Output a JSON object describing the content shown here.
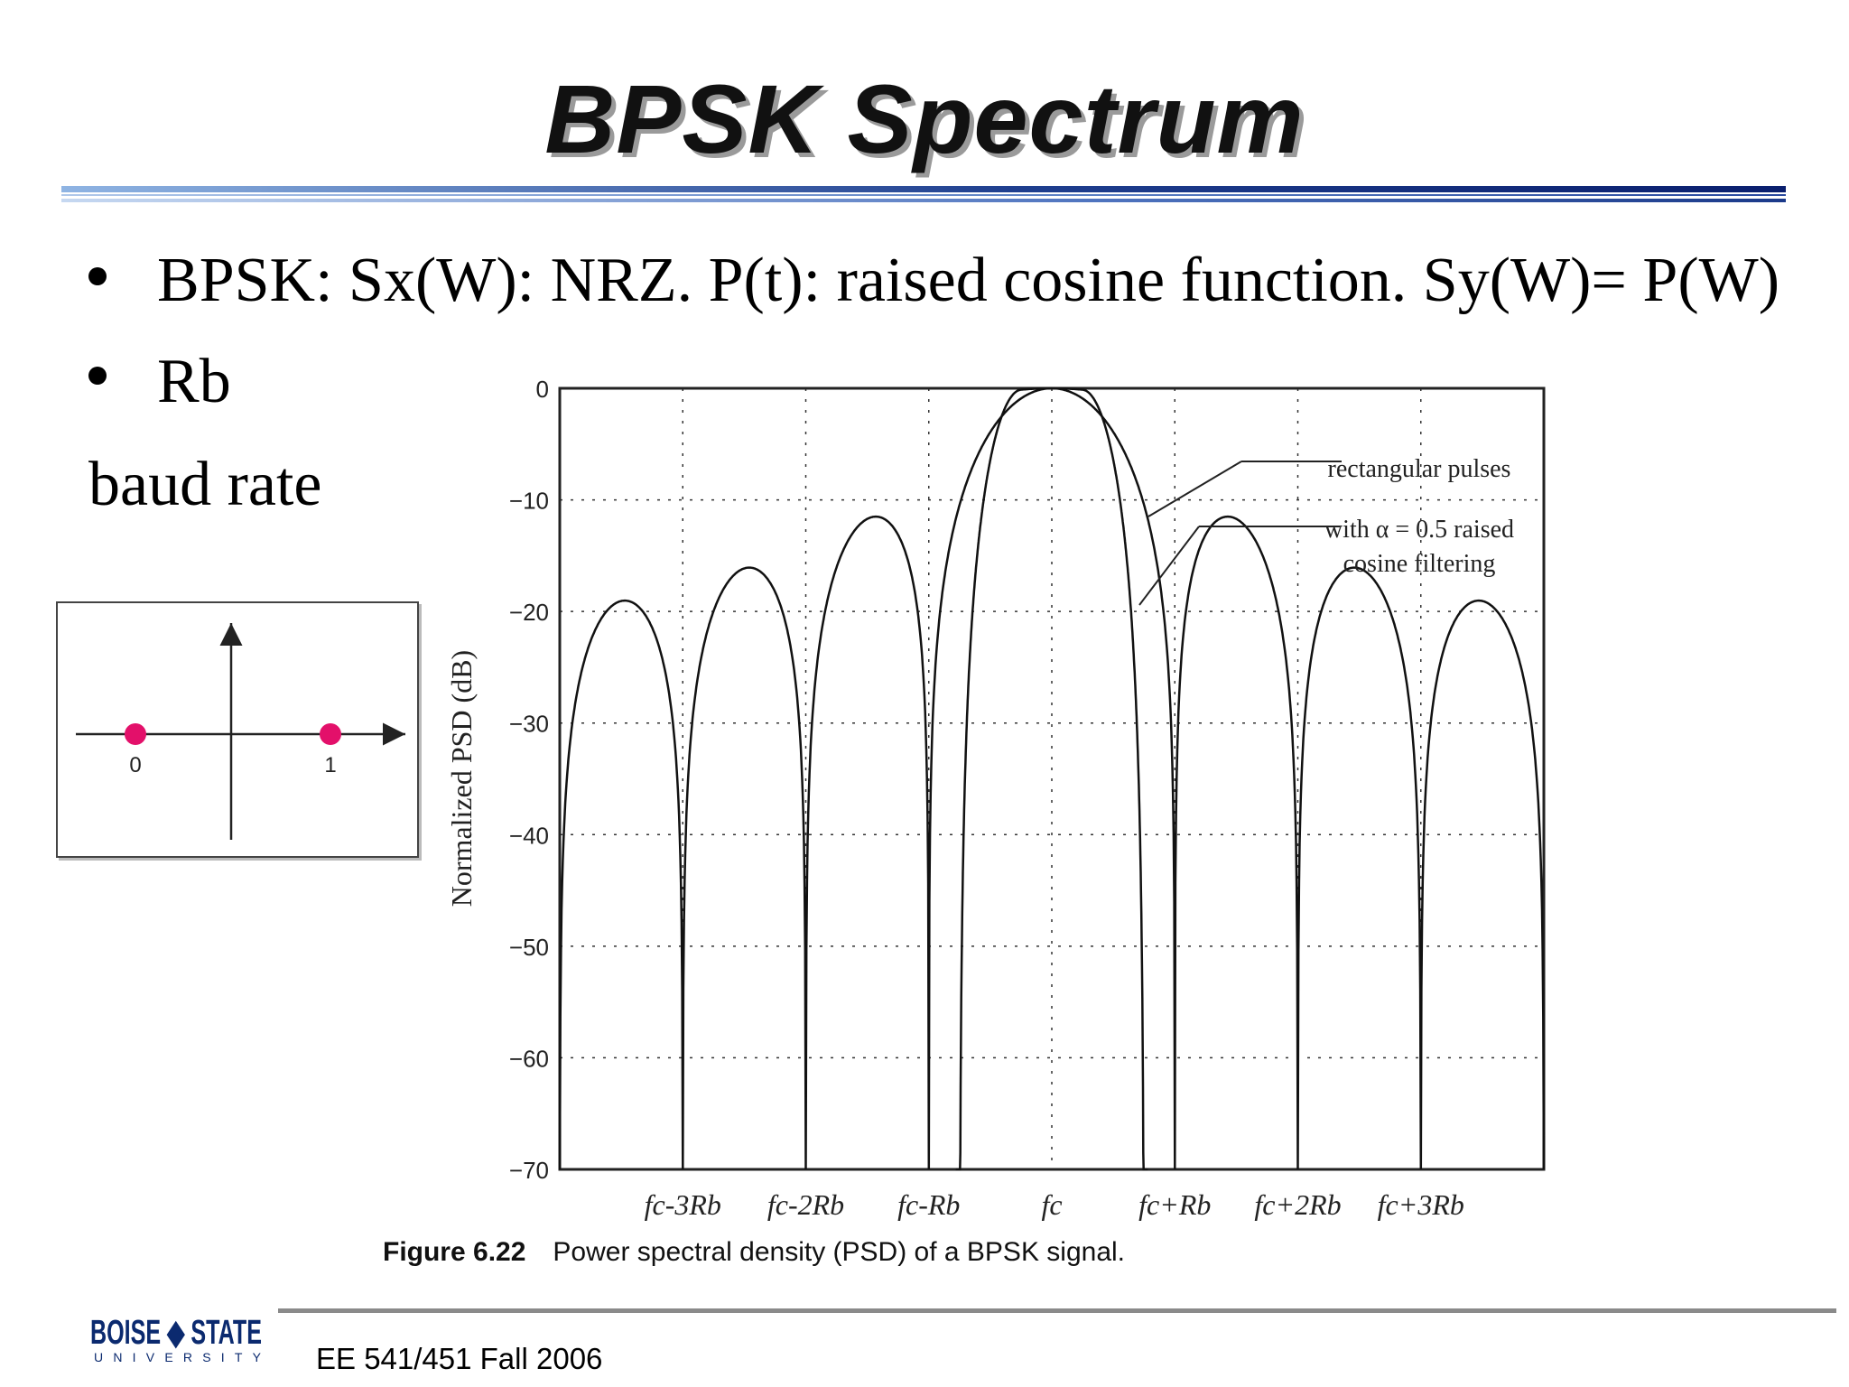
{
  "slide": {
    "title": "BPSK Spectrum",
    "bullets": [
      "BPSK: Sx(W): NRZ. P(t): raised cosine function. Sy(W)= P(W)",
      "Rb"
    ],
    "extra_text": "baud rate",
    "footer": "EE 541/451 Fall 2006",
    "logo_text_top": "BOISE STATE",
    "logo_text_bottom": "UNIVERSITY"
  },
  "constellation": {
    "points": [
      {
        "label": "0",
        "value": -1
      },
      {
        "label": "1",
        "value": 1
      }
    ],
    "point_color": "#e3106a"
  },
  "figure": {
    "caption_label": "Figure 6.22",
    "caption_text": "Power spectral density (PSD) of a BPSK signal."
  },
  "chart_data": {
    "type": "line",
    "title": "",
    "ylabel": "Normalized PSD (dB)",
    "xlabel": "",
    "x_unit": "Rb offset from fc",
    "xlim": [
      -4,
      4
    ],
    "ylim": [
      -70,
      0
    ],
    "yticks": [
      0,
      -10,
      -20,
      -30,
      -40,
      -50,
      -60,
      -70
    ],
    "xticks": [
      {
        "value": -3,
        "label": "fc-3Rb"
      },
      {
        "value": -2,
        "label": "fc-2Rb"
      },
      {
        "value": -1,
        "label": "fc-Rb"
      },
      {
        "value": 0,
        "label": "fc"
      },
      {
        "value": 1,
        "label": "fc+Rb"
      },
      {
        "value": 2,
        "label": "fc+2Rb"
      },
      {
        "value": 3,
        "label": "fc+3Rb"
      }
    ],
    "grid": true,
    "series": [
      {
        "name": "rectangular pulses",
        "x": [
          -4,
          -3.75,
          -3.5,
          -3.25,
          -3,
          -2.75,
          -2.5,
          -2.25,
          -2,
          -1.75,
          -1.5,
          -1.25,
          -1,
          -0.75,
          -0.5,
          -0.25,
          0,
          0.25,
          0.5,
          0.75,
          1,
          1.25,
          1.5,
          1.75,
          2,
          2.25,
          2.5,
          2.75,
          3,
          3.25,
          3.5,
          3.75,
          4
        ],
        "y": [
          -70,
          -24.2,
          -20.8,
          -24.0,
          -70,
          -22.7,
          -17.9,
          -21.6,
          -70,
          -18.6,
          -13.5,
          -16.3,
          -70,
          -5.4,
          -3.9,
          -0.9,
          0,
          -0.9,
          -3.9,
          -5.4,
          -70,
          -16.3,
          -13.5,
          -18.6,
          -70,
          -21.6,
          -17.9,
          -22.7,
          -70,
          -24.0,
          -20.8,
          -24.2,
          -70
        ]
      },
      {
        "name": "with α = 0.5 raised cosine filtering",
        "x": [
          -1,
          -0.75,
          -0.5,
          -0.25,
          0,
          0.25,
          0.5,
          0.75,
          1
        ],
        "y": [
          -60,
          -12.0,
          -3.2,
          -0.2,
          0,
          -0.2,
          -3.2,
          -12.0,
          -60
        ]
      }
    ],
    "annotations": [
      {
        "text": "rectangular pulses"
      },
      {
        "text": "with α = 0.5 raised"
      },
      {
        "text": "cosine filtering"
      }
    ]
  }
}
